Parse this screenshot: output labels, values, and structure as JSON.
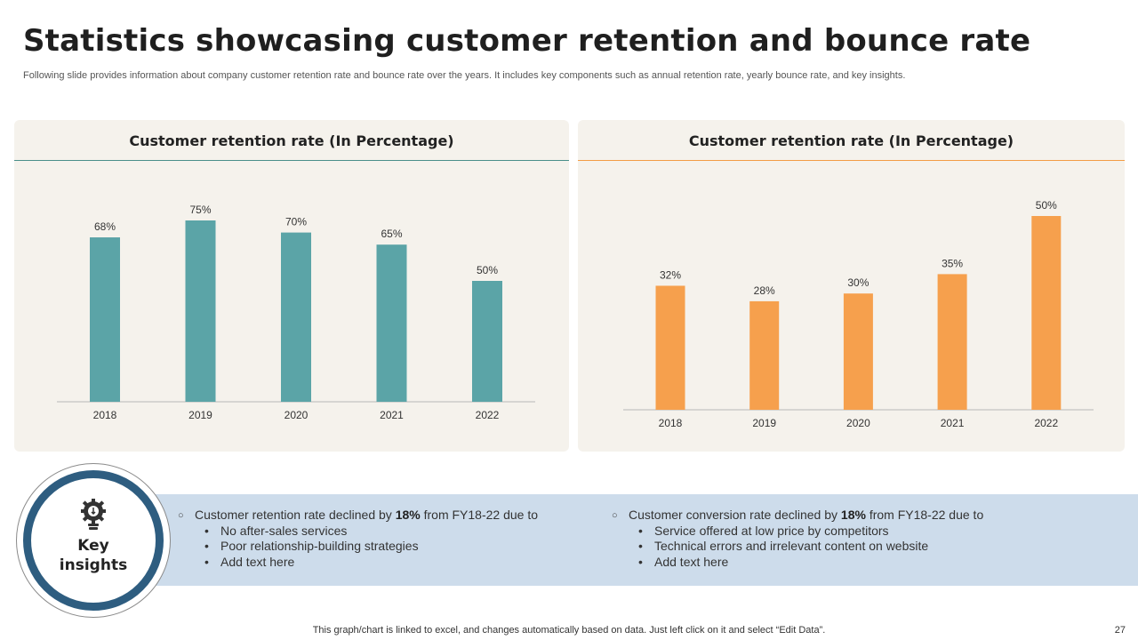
{
  "title": "Statistics showcasing customer retention and bounce rate",
  "subtitle": "Following slide provides information about company customer retention rate and bounce rate over the years. It includes key components such as annual retention rate, yearly bounce rate, and key insights.",
  "chart_data": [
    {
      "type": "bar",
      "title": "Customer retention rate (In Percentage)",
      "categories": [
        "2018",
        "2019",
        "2020",
        "2021",
        "2022"
      ],
      "values": [
        68,
        75,
        70,
        65,
        50
      ],
      "data_labels": [
        "68%",
        "75%",
        "70%",
        "65%",
        "50%"
      ],
      "ylim": [
        0,
        80
      ],
      "grid": false,
      "legend": "none",
      "color": "#5ba4a7"
    },
    {
      "type": "bar",
      "title": "Customer retention rate (In Percentage)",
      "categories": [
        "2018",
        "2019",
        "2020",
        "2021",
        "2022"
      ],
      "values": [
        32,
        28,
        30,
        35,
        50
      ],
      "data_labels": [
        "32%",
        "28%",
        "30%",
        "35%",
        "50%"
      ],
      "ylim": [
        0,
        55
      ],
      "grid": false,
      "legend": "none",
      "color": "#f6a04d"
    }
  ],
  "insights": {
    "label_line1": "Key",
    "label_line2": "insights",
    "icon": "lightbulb-gear-icon",
    "left": {
      "head_pre": "Customer retention rate declined by ",
      "head_bold": "18%",
      "head_post": " from FY18-22  due to",
      "items": [
        "No after-sales services",
        "Poor relationship-building  strategies",
        "Add text here"
      ]
    },
    "right": {
      "head_pre": "Customer conversion rate declined by ",
      "head_bold": "18%",
      "head_post": " from FY18-22  due to",
      "items": [
        "Service offered at low price by competitors",
        "Technical errors and irrelevant content on website",
        "Add text here"
      ]
    }
  },
  "footer": {
    "note": "This graph/chart is linked to excel,  and changes automatically based on data. Just left click on it and select “Edit Data”.",
    "page": "27"
  },
  "colors": {
    "teal": "#5ba4a7",
    "orange": "#f6a04d",
    "navy": "#2e5d80",
    "band": "#cddceb",
    "panel": "#f5f2ec"
  }
}
